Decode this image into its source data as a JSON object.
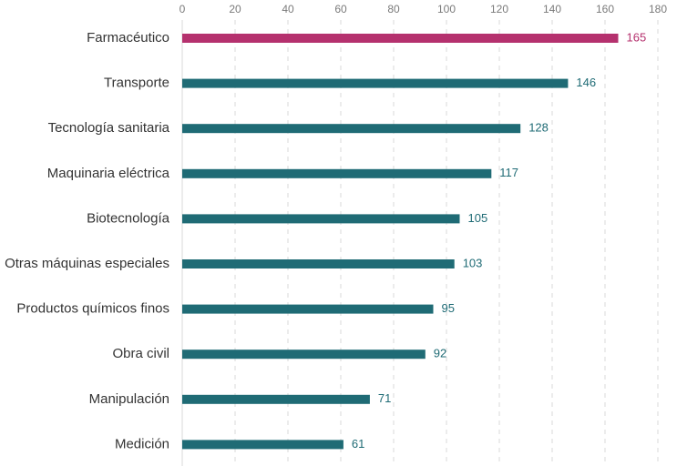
{
  "chart_data": {
    "type": "bar",
    "orientation": "horizontal",
    "categories": [
      "Farmacéutico",
      "Transporte",
      "Tecnología sanitaria",
      "Maquinaria eléctrica",
      "Biotecnología",
      "Otras máquinas especiales",
      "Productos químicos finos",
      "Obra civil",
      "Manipulación",
      "Medición"
    ],
    "values": [
      165,
      146,
      128,
      117,
      105,
      103,
      95,
      92,
      71,
      61
    ],
    "highlight_index": 0,
    "xlim": [
      0,
      180
    ],
    "xticks": [
      0,
      20,
      40,
      60,
      80,
      100,
      120,
      140,
      160,
      180
    ],
    "x_axis_position": "top",
    "grid": true,
    "title": "",
    "xlabel": "",
    "ylabel": "",
    "colors": {
      "bar": "#1f6b75",
      "highlight": "#b5316e",
      "value_label": "#1f6b75",
      "highlight_label": "#b5316e"
    }
  }
}
